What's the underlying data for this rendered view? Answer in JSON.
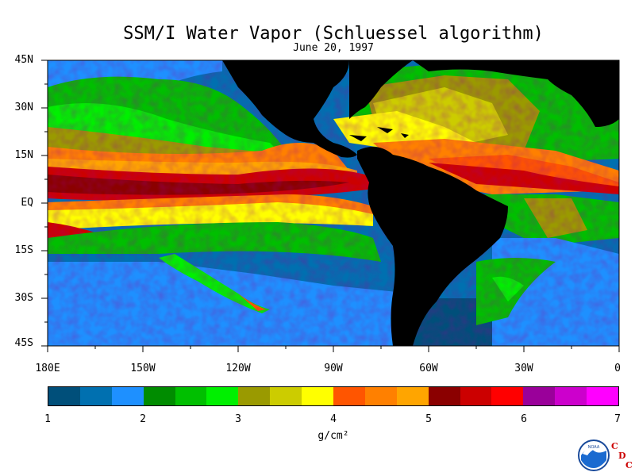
{
  "title": "SSM/I Water Vapor (Schluessel algorithm)",
  "date": "June 20, 1997",
  "lat_labels": [
    "45N",
    "30N",
    "15N",
    "EQ",
    "15S",
    "30S",
    "45S"
  ],
  "lon_labels": [
    "180E",
    "150W",
    "120W",
    "90W",
    "60W",
    "30W",
    "0"
  ],
  "colorbar": {
    "ticks": [
      "1",
      "2",
      "3",
      "4",
      "5",
      "6",
      "7"
    ],
    "units": "g/cm²",
    "colors": [
      "#004f7a",
      "#0070b0",
      "#1e90ff",
      "#008c00",
      "#00bf00",
      "#00f000",
      "#9a9a00",
      "#cccc00",
      "#ffff00",
      "#ff5500",
      "#ff8000",
      "#ffa500",
      "#8b0000",
      "#cc0000",
      "#ff0000",
      "#9a009a",
      "#cc00cc",
      "#ff00ff"
    ]
  },
  "logo": {
    "name": "NOAA",
    "mark": [
      "C",
      "D",
      "C"
    ]
  }
}
